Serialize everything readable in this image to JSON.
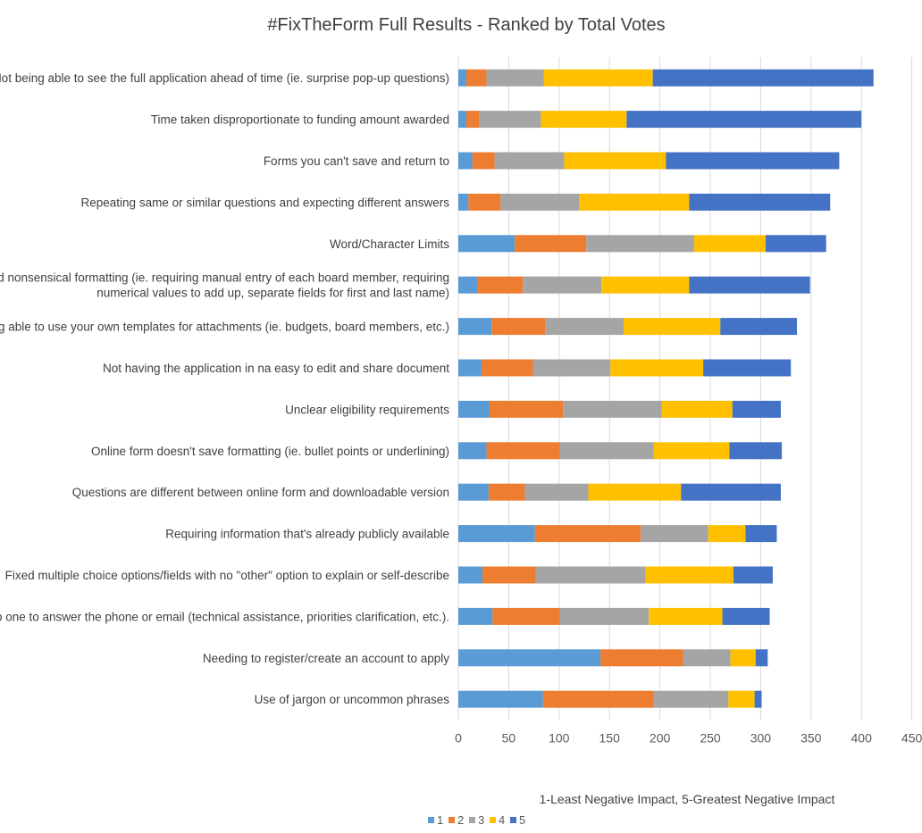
{
  "chart_data": {
    "type": "bar",
    "orientation": "horizontal",
    "stacked": true,
    "title": "#FixTheForm Full Results - Ranked by Total Votes",
    "xlabel": "1-Least Negative Impact, 5-Greatest Negative Impact",
    "ylabel": "",
    "xlim": [
      0,
      450
    ],
    "x_ticks": [
      0,
      50,
      100,
      150,
      200,
      250,
      300,
      350,
      400,
      450
    ],
    "grid": true,
    "legend_position": "bottom-center",
    "categories": [
      [
        "Not being able to see the full application ahead of time (ie. surprise pop-up questions)"
      ],
      [
        "Time taken disproportionate to funding amount awarded"
      ],
      [
        "Forms you can't save and return to"
      ],
      [
        "Repeating same or similar questions and expecting different answers"
      ],
      [
        "Word/Character Limits"
      ],
      [
        "Poor and nonsensical formatting (ie. requiring manual entry of each board member, requiring",
        "numerical values to add up, separate fields for first and last name)"
      ],
      [
        "Not being able to use your own templates for attachments (ie. budgets, board members, etc.)"
      ],
      [
        "Not having the application in na easy to edit and share document"
      ],
      [
        "Unclear eligibility requirements"
      ],
      [
        "Online form doesn't save formatting (ie. bullet points or underlining)"
      ],
      [
        "Questions are different between online form and downloadable version"
      ],
      [
        "Requiring information that's already publicly available"
      ],
      [
        "Fixed multiple choice options/fields with no \"other\" option to explain or self-describe"
      ],
      [
        "No one to answer the phone or email (technical assistance, priorities clarification, etc.)."
      ],
      [
        "Needing to register/create an account to apply"
      ],
      [
        "Use of jargon or uncommon phrases"
      ]
    ],
    "series": [
      {
        "name": "1",
        "color": "#5B9BD5",
        "values": [
          8,
          8,
          14,
          10,
          56,
          19,
          33,
          23,
          31,
          28,
          30,
          76,
          24,
          34,
          141,
          84
        ]
      },
      {
        "name": "2",
        "color": "#ED7D31",
        "values": [
          20,
          13,
          22,
          32,
          71,
          45,
          53,
          51,
          73,
          73,
          36,
          105,
          53,
          67,
          82,
          110
        ]
      },
      {
        "name": "3",
        "color": "#A5A5A5",
        "values": [
          57,
          61,
          69,
          78,
          107,
          78,
          78,
          77,
          98,
          93,
          63,
          67,
          109,
          88,
          47,
          74
        ]
      },
      {
        "name": "4",
        "color": "#FFC000",
        "values": [
          108,
          85,
          101,
          109,
          71,
          87,
          96,
          92,
          70,
          75,
          92,
          37,
          87,
          73,
          25,
          26
        ]
      },
      {
        "name": "5",
        "color": "#4472C4",
        "values": [
          219,
          233,
          172,
          140,
          60,
          120,
          76,
          87,
          48,
          52,
          99,
          31,
          39,
          47,
          12,
          7
        ]
      }
    ]
  }
}
